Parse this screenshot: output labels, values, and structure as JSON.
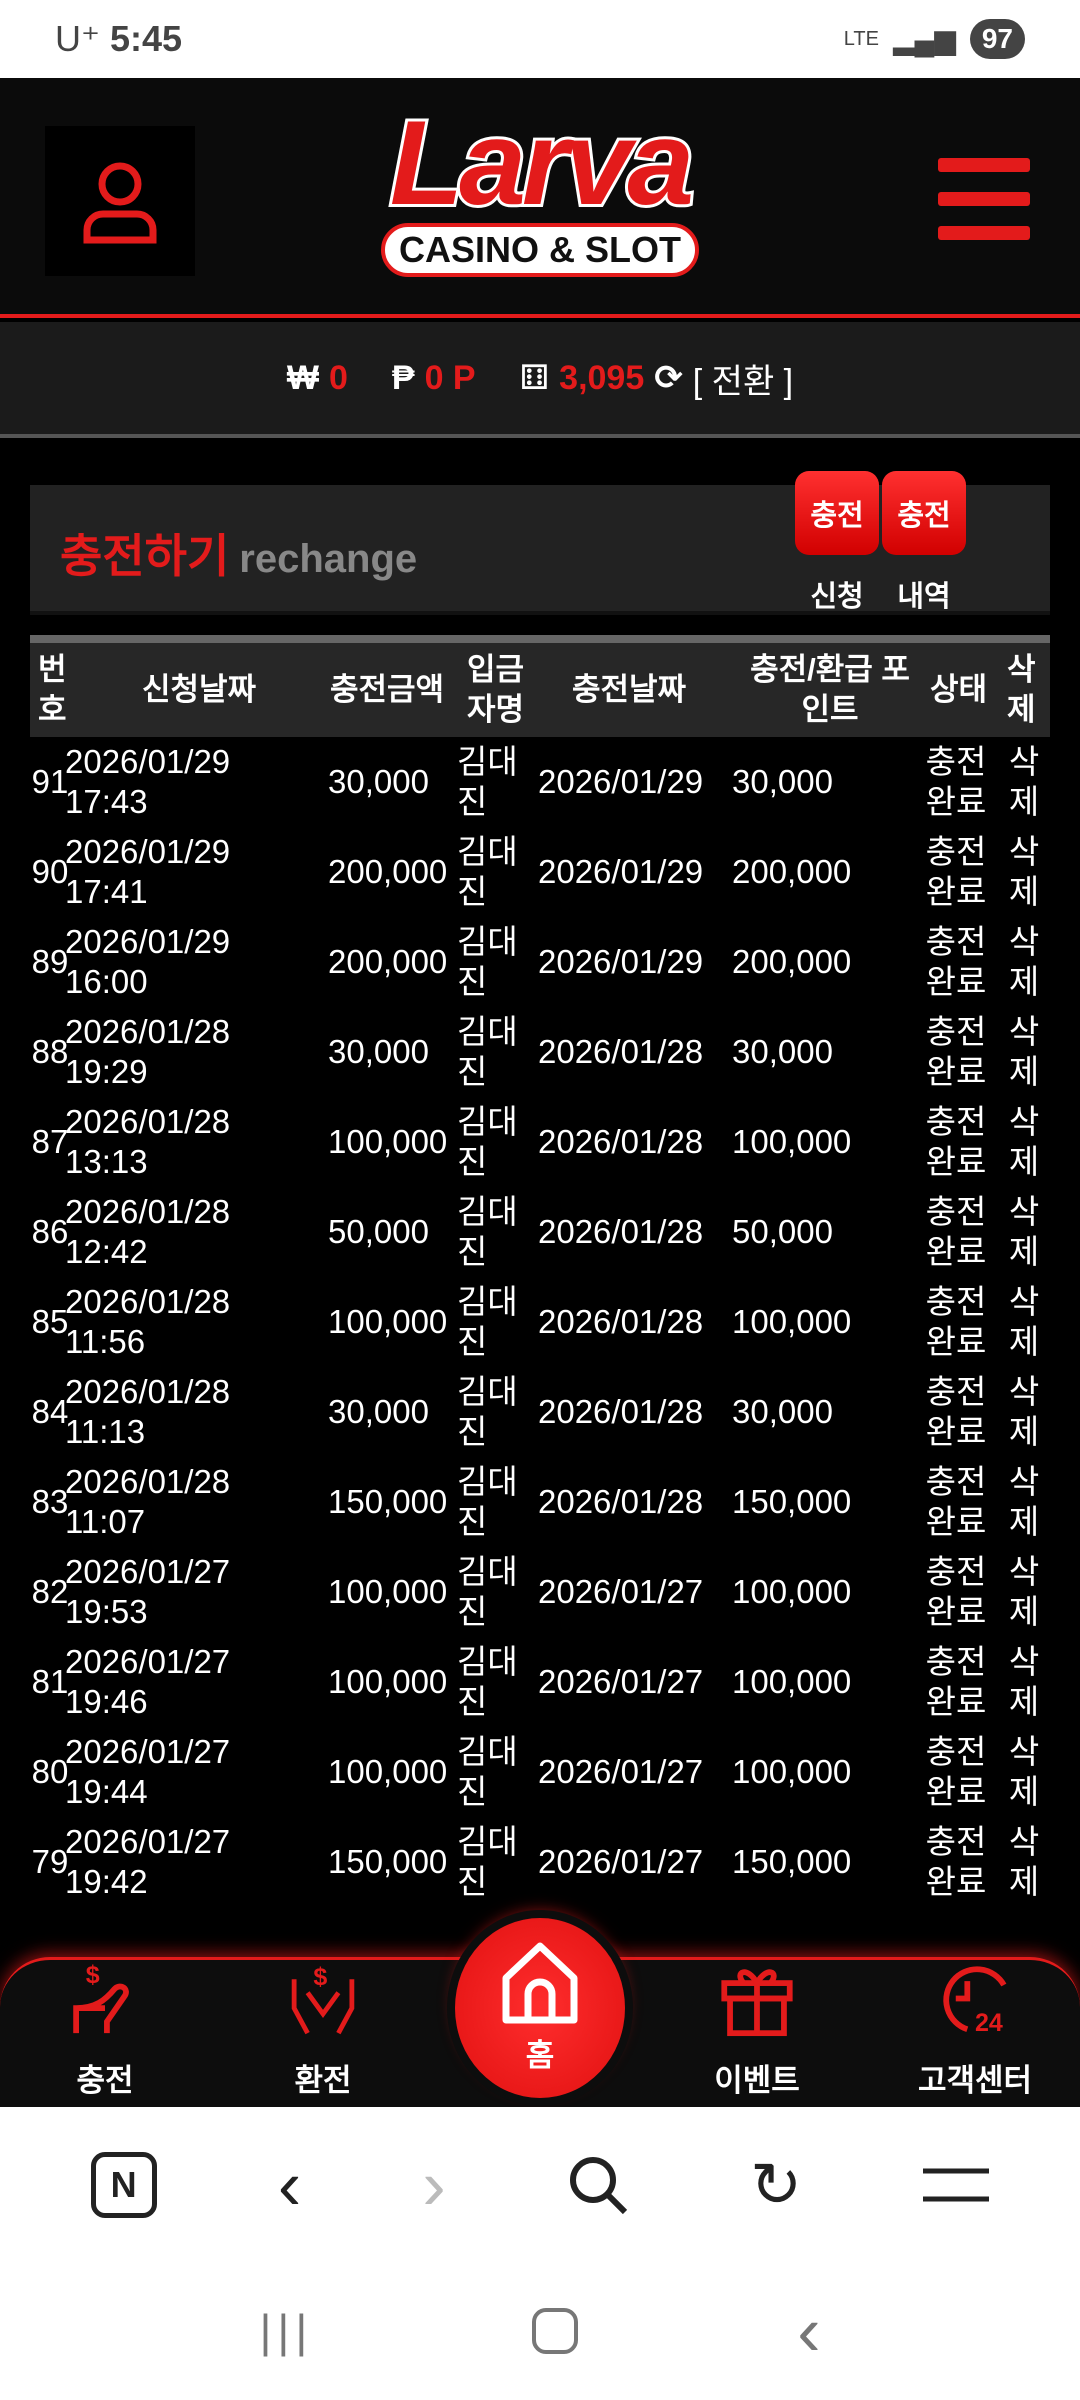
{
  "status_bar": {
    "carrier": "U⁺",
    "time": "5:45",
    "network": "LTE",
    "battery": "97"
  },
  "header": {
    "logo_text": "Larva",
    "logo_sub": "CASINO & SLOT"
  },
  "balance": {
    "won_symbol": "₩",
    "won": "0",
    "point_symbol": "₱",
    "points": "0 P",
    "chips": "3,095",
    "convert_label": "[ 전환 ]"
  },
  "section": {
    "title": "충전하기",
    "subtitle": "rechange",
    "btn_apply": "충전",
    "btn_apply_label": "신청",
    "btn_history": "충전",
    "btn_history_label": "내역"
  },
  "table": {
    "headers": [
      "번\n호",
      "신청날짜",
      "충전금액",
      "입금\n자명",
      "충전날짜",
      "충전/환급 포\n인트",
      "상태",
      "삭\n제"
    ],
    "rows": [
      {
        "no": "91",
        "req_date": "2026/01/29",
        "req_time": "17:43",
        "amount": "30,000",
        "name1": "김대",
        "name2": "진",
        "charge_date": "2026/01/29",
        "points": "30,000",
        "status1": "충전",
        "status2": "완료",
        "del1": "삭",
        "del2": "제"
      },
      {
        "no": "90",
        "req_date": "2026/01/29",
        "req_time": "17:41",
        "amount": "200,000",
        "name1": "김대",
        "name2": "진",
        "charge_date": "2026/01/29",
        "points": "200,000",
        "status1": "충전",
        "status2": "완료",
        "del1": "삭",
        "del2": "제"
      },
      {
        "no": "89",
        "req_date": "2026/01/29",
        "req_time": "16:00",
        "amount": "200,000",
        "name1": "김대",
        "name2": "진",
        "charge_date": "2026/01/29",
        "points": "200,000",
        "status1": "충전",
        "status2": "완료",
        "del1": "삭",
        "del2": "제"
      },
      {
        "no": "88",
        "req_date": "2026/01/28",
        "req_time": "19:29",
        "amount": "30,000",
        "name1": "김대",
        "name2": "진",
        "charge_date": "2026/01/28",
        "points": "30,000",
        "status1": "충전",
        "status2": "완료",
        "del1": "삭",
        "del2": "제"
      },
      {
        "no": "87",
        "req_date": "2026/01/28",
        "req_time": "13:13",
        "amount": "100,000",
        "name1": "김대",
        "name2": "진",
        "charge_date": "2026/01/28",
        "points": "100,000",
        "status1": "충전",
        "status2": "완료",
        "del1": "삭",
        "del2": "제"
      },
      {
        "no": "86",
        "req_date": "2026/01/28",
        "req_time": "12:42",
        "amount": "50,000",
        "name1": "김대",
        "name2": "진",
        "charge_date": "2026/01/28",
        "points": "50,000",
        "status1": "충전",
        "status2": "완료",
        "del1": "삭",
        "del2": "제"
      },
      {
        "no": "85",
        "req_date": "2026/01/28",
        "req_time": "11:56",
        "amount": "100,000",
        "name1": "김대",
        "name2": "진",
        "charge_date": "2026/01/28",
        "points": "100,000",
        "status1": "충전",
        "status2": "완료",
        "del1": "삭",
        "del2": "제"
      },
      {
        "no": "84",
        "req_date": "2026/01/28",
        "req_time": "11:13",
        "amount": "30,000",
        "name1": "김대",
        "name2": "진",
        "charge_date": "2026/01/28",
        "points": "30,000",
        "status1": "충전",
        "status2": "완료",
        "del1": "삭",
        "del2": "제"
      },
      {
        "no": "83",
        "req_date": "2026/01/28",
        "req_time": "11:07",
        "amount": "150,000",
        "name1": "김대",
        "name2": "진",
        "charge_date": "2026/01/28",
        "points": "150,000",
        "status1": "충전",
        "status2": "완료",
        "del1": "삭",
        "del2": "제"
      },
      {
        "no": "82",
        "req_date": "2026/01/27",
        "req_time": "19:53",
        "amount": "100,000",
        "name1": "김대",
        "name2": "진",
        "charge_date": "2026/01/27",
        "points": "100,000",
        "status1": "충전",
        "status2": "완료",
        "del1": "삭",
        "del2": "제"
      },
      {
        "no": "81",
        "req_date": "2026/01/27",
        "req_time": "19:46",
        "amount": "100,000",
        "name1": "김대",
        "name2": "진",
        "charge_date": "2026/01/27",
        "points": "100,000",
        "status1": "충전",
        "status2": "완료",
        "del1": "삭",
        "del2": "제"
      },
      {
        "no": "80",
        "req_date": "2026/01/27",
        "req_time": "19:44",
        "amount": "100,000",
        "name1": "김대",
        "name2": "진",
        "charge_date": "2026/01/27",
        "points": "100,000",
        "status1": "충전",
        "status2": "완료",
        "del1": "삭",
        "del2": "제"
      },
      {
        "no": "79",
        "req_date": "2026/01/27",
        "req_time": "19:42",
        "amount": "150,000",
        "name1": "김대",
        "name2": "진",
        "charge_date": "2026/01/27",
        "points": "150,000",
        "status1": "충전",
        "status2": "완료",
        "del1": "삭",
        "del2": "제"
      }
    ]
  },
  "bottom_nav": {
    "items": [
      {
        "label": "충전",
        "icon": "hand-dollar-icon"
      },
      {
        "label": "환전",
        "icon": "hands-dollar-icon"
      },
      {
        "label": "홈",
        "icon": "home-icon"
      },
      {
        "label": "이벤트",
        "icon": "gift-icon"
      },
      {
        "label": "고객센터",
        "icon": "clock-24-icon"
      }
    ]
  },
  "colors": {
    "accent": "#e31b1b",
    "background": "#000000",
    "panel": "#222222"
  }
}
